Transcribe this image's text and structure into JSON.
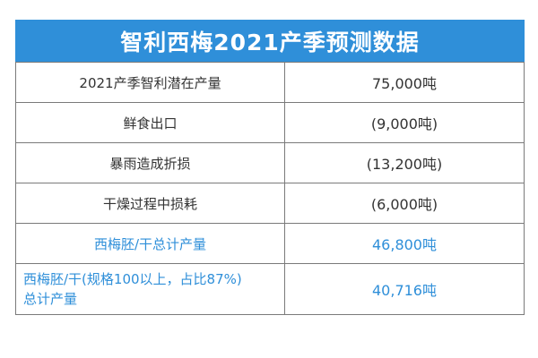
{
  "title": "智利西梅2021产季预测数据",
  "rows": [
    {
      "label": "2021产季智利潜在产量",
      "value": "75,000吨"
    },
    {
      "label": "鲜食出口",
      "value": "(9,000吨)"
    },
    {
      "label": "暴雨造成折损",
      "value": "(13,200吨)"
    },
    {
      "label": "干燥过程中损耗",
      "value": "(6,000吨)"
    },
    {
      "label": "西梅胚/干总计产量",
      "value": "46,800吨"
    },
    {
      "label_line1": "西梅胚/干(规格100以上，占比87%)",
      "label_line2": "总计产量",
      "value": "40,716吨"
    }
  ],
  "colors": {
    "header_bg": "#2f8fd9",
    "highlight_text": "#2f8fd9",
    "border": "#7a7a7a"
  }
}
